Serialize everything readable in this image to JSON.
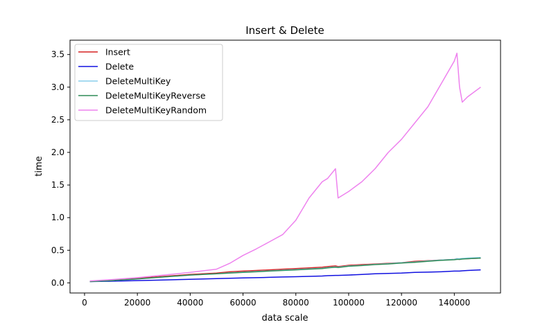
{
  "chart_data": {
    "type": "line",
    "title": "Insert & Delete",
    "xlabel": "data scale",
    "ylabel": "time",
    "xlim": [
      -5500,
      157500
    ],
    "ylim": [
      -0.155,
      3.72
    ],
    "x_ticks": [
      0,
      20000,
      40000,
      60000,
      80000,
      100000,
      120000,
      140000
    ],
    "x_tick_labels": [
      "0",
      "20000",
      "40000",
      "60000",
      "80000",
      "100000",
      "120000",
      "140000"
    ],
    "y_ticks": [
      0.0,
      0.5,
      1.0,
      1.5,
      2.0,
      2.5,
      3.0,
      3.5
    ],
    "y_tick_labels": [
      "0.0",
      "0.5",
      "1.0",
      "1.5",
      "2.0",
      "2.5",
      "3.0",
      "3.5"
    ],
    "grid": false,
    "legend_position": "upper-left",
    "x": [
      2000,
      10000,
      20000,
      30000,
      40000,
      50000,
      55000,
      60000,
      65000,
      70000,
      75000,
      80000,
      85000,
      90000,
      92000,
      95000,
      96000,
      100000,
      105000,
      110000,
      115000,
      120000,
      125000,
      130000,
      135000,
      140000,
      141000,
      142000,
      143000,
      145000,
      150000
    ],
    "series": [
      {
        "name": "Insert",
        "color": "#d62020",
        "values": [
          0.02,
          0.04,
          0.07,
          0.1,
          0.13,
          0.15,
          0.17,
          0.18,
          0.19,
          0.2,
          0.21,
          0.22,
          0.23,
          0.24,
          0.25,
          0.26,
          0.25,
          0.27,
          0.28,
          0.29,
          0.3,
          0.31,
          0.33,
          0.34,
          0.35,
          0.36,
          0.37,
          0.36,
          0.37,
          0.37,
          0.38
        ]
      },
      {
        "name": "Delete",
        "color": "#1010e0",
        "values": [
          0.02,
          0.025,
          0.035,
          0.045,
          0.055,
          0.065,
          0.07,
          0.075,
          0.08,
          0.085,
          0.09,
          0.095,
          0.1,
          0.105,
          0.11,
          0.115,
          0.115,
          0.12,
          0.13,
          0.14,
          0.145,
          0.15,
          0.16,
          0.165,
          0.17,
          0.18,
          0.18,
          0.18,
          0.185,
          0.19,
          0.2
        ]
      },
      {
        "name": "DeleteMultiKey",
        "color": "#87ceeb",
        "values": [
          0.02,
          0.035,
          0.06,
          0.09,
          0.12,
          0.14,
          0.155,
          0.165,
          0.175,
          0.185,
          0.195,
          0.205,
          0.215,
          0.225,
          0.235,
          0.245,
          0.24,
          0.26,
          0.27,
          0.285,
          0.295,
          0.31,
          0.32,
          0.335,
          0.35,
          0.36,
          0.37,
          0.37,
          0.375,
          0.38,
          0.39
        ]
      },
      {
        "name": "DeleteMultiKeyReverse",
        "color": "#2e8b57",
        "values": [
          0.02,
          0.035,
          0.06,
          0.09,
          0.12,
          0.14,
          0.15,
          0.16,
          0.17,
          0.18,
          0.19,
          0.2,
          0.21,
          0.22,
          0.23,
          0.24,
          0.235,
          0.255,
          0.265,
          0.28,
          0.29,
          0.305,
          0.315,
          0.33,
          0.345,
          0.355,
          0.36,
          0.36,
          0.365,
          0.37,
          0.38
        ]
      },
      {
        "name": "DeleteMultiKeyRandom",
        "color": "#ee82ee",
        "values": [
          0.03,
          0.05,
          0.08,
          0.12,
          0.16,
          0.21,
          0.3,
          0.42,
          0.52,
          0.63,
          0.74,
          0.96,
          1.3,
          1.55,
          1.6,
          1.75,
          1.3,
          1.4,
          1.55,
          1.75,
          2.0,
          2.2,
          2.45,
          2.7,
          3.05,
          3.4,
          3.52,
          3.0,
          2.77,
          2.85,
          3.0
        ]
      }
    ]
  }
}
